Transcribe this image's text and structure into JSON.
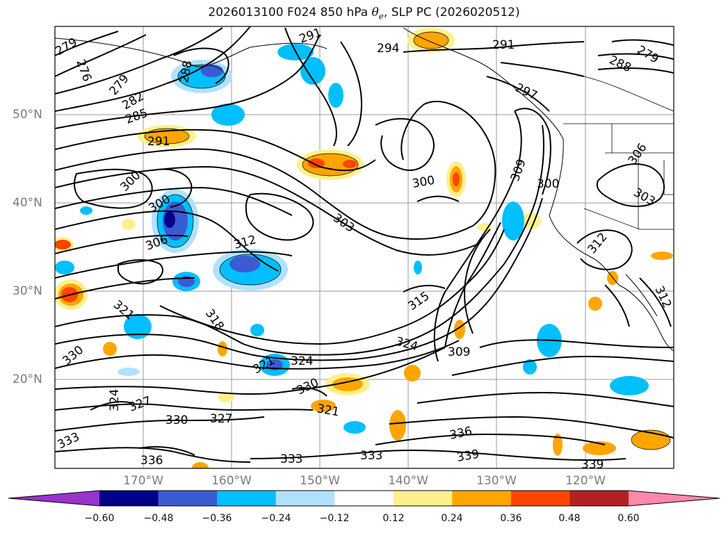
{
  "title": {
    "prefix": "2026013100 F024 850 hPa ",
    "symbol": "θ",
    "subscript": "e",
    "suffix": ", SLP PC (2026020512)"
  },
  "map": {
    "lat_labels": [
      "50°N",
      "40°N",
      "30°N",
      "20°N"
    ],
    "lon_labels": [
      "170°W",
      "160°W",
      "150°W",
      "140°W",
      "130°W",
      "120°W"
    ],
    "gridlines": true
  },
  "contour_labels": [
    {
      "text": "279",
      "name": "contour-label-279-a"
    },
    {
      "text": "276",
      "name": "contour-label-276"
    },
    {
      "text": "279",
      "name": "contour-label-279-b"
    },
    {
      "text": "282",
      "name": "contour-label-282"
    },
    {
      "text": "285",
      "name": "contour-label-285"
    },
    {
      "text": "288",
      "name": "contour-label-288-a"
    },
    {
      "text": "291",
      "name": "contour-label-291-a"
    },
    {
      "text": "291",
      "name": "contour-label-291-b"
    },
    {
      "text": "294",
      "name": "contour-label-294"
    },
    {
      "text": "291",
      "name": "contour-label-291-c"
    },
    {
      "text": "297",
      "name": "contour-label-297"
    },
    {
      "text": "288",
      "name": "contour-label-288-b"
    },
    {
      "text": "279",
      "name": "contour-label-279-c"
    },
    {
      "text": "300",
      "name": "contour-label-300-a"
    },
    {
      "text": "300",
      "name": "contour-label-300-b"
    },
    {
      "text": "300",
      "name": "contour-label-300-c"
    },
    {
      "text": "300",
      "name": "contour-label-300-d"
    },
    {
      "text": "303",
      "name": "contour-label-303-a"
    },
    {
      "text": "303",
      "name": "contour-label-303-b"
    },
    {
      "text": "306",
      "name": "contour-label-306-a"
    },
    {
      "text": "306",
      "name": "contour-label-306-b"
    },
    {
      "text": "309",
      "name": "contour-label-309-a"
    },
    {
      "text": "309",
      "name": "contour-label-309-b"
    },
    {
      "text": "312",
      "name": "contour-label-312-a"
    },
    {
      "text": "312",
      "name": "contour-label-312-b"
    },
    {
      "text": "312",
      "name": "contour-label-312-c"
    },
    {
      "text": "315",
      "name": "contour-label-315"
    },
    {
      "text": "318",
      "name": "contour-label-318"
    },
    {
      "text": "321",
      "name": "contour-label-321-a"
    },
    {
      "text": "321",
      "name": "contour-label-321-b"
    },
    {
      "text": "321",
      "name": "contour-label-321-c"
    },
    {
      "text": "324",
      "name": "contour-label-324-a"
    },
    {
      "text": "324",
      "name": "contour-label-324-b"
    },
    {
      "text": "324",
      "name": "contour-label-324-c"
    },
    {
      "text": "327",
      "name": "contour-label-327-a"
    },
    {
      "text": "327",
      "name": "contour-label-327-b"
    },
    {
      "text": "330",
      "name": "contour-label-330-a"
    },
    {
      "text": "330",
      "name": "contour-label-330-b"
    },
    {
      "text": "330",
      "name": "contour-label-330-c"
    },
    {
      "text": "333",
      "name": "contour-label-333-a"
    },
    {
      "text": "333",
      "name": "contour-label-333-b"
    },
    {
      "text": "333",
      "name": "contour-label-333-c"
    },
    {
      "text": "336",
      "name": "contour-label-336-a"
    },
    {
      "text": "336",
      "name": "contour-label-336-b"
    },
    {
      "text": "339",
      "name": "contour-label-339-a"
    },
    {
      "text": "339",
      "name": "contour-label-339-b"
    }
  ],
  "colorbar": {
    "tick_labels": [
      "−0.60",
      "−0.48",
      "−0.36",
      "−0.24",
      "−0.12",
      "0.12",
      "0.24",
      "0.36",
      "0.48",
      "0.60"
    ],
    "colors": [
      "#9933cc",
      "#000088",
      "#3a5bd1",
      "#00bfff",
      "#b0e2ff",
      "#ffffff",
      "#fff08a",
      "#ffa500",
      "#ff4500",
      "#b22222",
      "#ff88aa"
    ],
    "extend": "both"
  }
}
